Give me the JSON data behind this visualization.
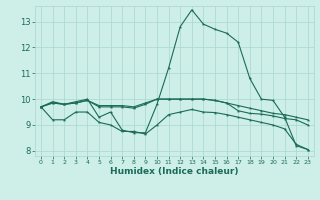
{
  "xlabel": "Humidex (Indice chaleur)",
  "xlim": [
    -0.5,
    23.5
  ],
  "ylim": [
    7.8,
    13.6
  ],
  "yticks": [
    8,
    9,
    10,
    11,
    12,
    13
  ],
  "xticks": [
    0,
    1,
    2,
    3,
    4,
    5,
    6,
    7,
    8,
    9,
    10,
    11,
    12,
    13,
    14,
    15,
    16,
    17,
    18,
    19,
    20,
    21,
    22,
    23
  ],
  "bg_color": "#ceeee8",
  "grid_color": "#a8d8d0",
  "line_color": "#1a6b5a",
  "line1": [
    9.7,
    9.9,
    9.8,
    9.9,
    10.0,
    9.3,
    9.5,
    8.8,
    8.7,
    8.7,
    9.8,
    11.2,
    12.8,
    13.45,
    12.9,
    12.7,
    12.55,
    12.2,
    10.8,
    10.0,
    9.95,
    9.3,
    8.2,
    8.05
  ],
  "line2": [
    9.7,
    9.85,
    9.8,
    9.85,
    9.95,
    9.7,
    9.7,
    9.7,
    9.65,
    9.8,
    10.0,
    10.0,
    10.0,
    10.0,
    10.0,
    9.95,
    9.85,
    9.75,
    9.65,
    9.55,
    9.45,
    9.4,
    9.3,
    9.2
  ],
  "line3": [
    9.7,
    9.2,
    9.2,
    9.5,
    9.5,
    9.1,
    9.0,
    8.75,
    8.75,
    8.65,
    9.0,
    9.4,
    9.5,
    9.6,
    9.5,
    9.48,
    9.4,
    9.3,
    9.2,
    9.1,
    9.0,
    8.85,
    8.25,
    8.05
  ],
  "line4": [
    9.7,
    9.85,
    9.8,
    9.85,
    9.95,
    9.75,
    9.75,
    9.75,
    9.7,
    9.85,
    10.0,
    10.0,
    10.0,
    10.0,
    10.0,
    9.95,
    9.85,
    9.55,
    9.45,
    9.42,
    9.35,
    9.25,
    9.2,
    9.0
  ]
}
